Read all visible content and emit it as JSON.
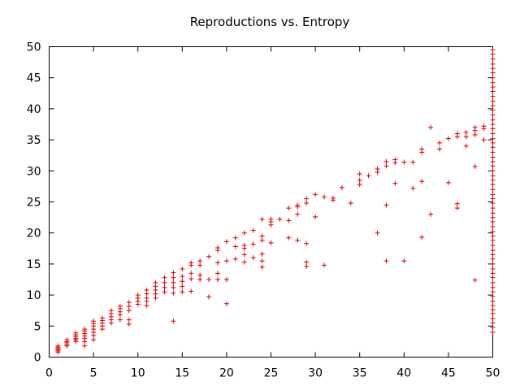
{
  "chart_data": {
    "type": "scatter",
    "title": "Reproductions vs. Entropy",
    "xlabel": "",
    "ylabel": "",
    "xlim": [
      0,
      50
    ],
    "ylim": [
      0,
      50
    ],
    "x_ticks": [
      0,
      5,
      10,
      15,
      20,
      25,
      30,
      35,
      40,
      45,
      50
    ],
    "y_ticks": [
      0,
      5,
      10,
      15,
      20,
      25,
      30,
      35,
      40,
      45,
      50
    ],
    "grid": false,
    "marker": "+",
    "color": "#dd0000",
    "series": [
      {
        "name": "Reproductions",
        "points": [
          [
            1,
            0.8
          ],
          [
            1,
            1.0
          ],
          [
            1,
            1.2
          ],
          [
            1,
            1.4
          ],
          [
            1,
            1.6
          ],
          [
            1,
            1.8
          ],
          [
            2,
            1.8
          ],
          [
            2,
            2.0
          ],
          [
            2,
            2.3
          ],
          [
            2,
            2.5
          ],
          [
            2,
            2.8
          ],
          [
            3,
            2.5
          ],
          [
            3,
            2.8
          ],
          [
            3,
            3.0
          ],
          [
            3,
            3.3
          ],
          [
            3,
            3.6
          ],
          [
            3,
            3.9
          ],
          [
            4,
            1.8
          ],
          [
            4,
            2.5
          ],
          [
            4,
            3.0
          ],
          [
            4,
            3.4
          ],
          [
            4,
            3.8
          ],
          [
            4,
            4.2
          ],
          [
            4,
            4.5
          ],
          [
            5,
            2.8
          ],
          [
            5,
            3.5
          ],
          [
            5,
            4.0
          ],
          [
            5,
            4.5
          ],
          [
            5,
            5.0
          ],
          [
            5,
            5.4
          ],
          [
            5,
            5.8
          ],
          [
            6,
            4.5
          ],
          [
            6,
            5.0
          ],
          [
            6,
            5.5
          ],
          [
            6,
            5.9
          ],
          [
            6,
            6.3
          ],
          [
            7,
            5.5
          ],
          [
            7,
            6.0
          ],
          [
            7,
            6.5
          ],
          [
            7,
            7.0
          ],
          [
            7,
            7.5
          ],
          [
            8,
            6.0
          ],
          [
            8,
            6.8
          ],
          [
            8,
            7.3
          ],
          [
            8,
            7.8
          ],
          [
            8,
            8.2
          ],
          [
            9,
            5.3
          ],
          [
            9,
            6.0
          ],
          [
            9,
            7.5
          ],
          [
            9,
            8.2
          ],
          [
            9,
            8.8
          ],
          [
            10,
            8.5
          ],
          [
            10,
            9.0
          ],
          [
            10,
            9.5
          ],
          [
            10,
            10.0
          ],
          [
            11,
            8.3
          ],
          [
            11,
            9.0
          ],
          [
            11,
            9.5
          ],
          [
            11,
            10.2
          ],
          [
            11,
            10.8
          ],
          [
            12,
            9.5
          ],
          [
            12,
            10.2
          ],
          [
            12,
            10.8
          ],
          [
            12,
            11.4
          ],
          [
            12,
            12.0
          ],
          [
            13,
            10.5
          ],
          [
            13,
            11.2
          ],
          [
            13,
            12.0
          ],
          [
            13,
            12.8
          ],
          [
            14,
            5.8
          ],
          [
            14,
            10.3
          ],
          [
            14,
            11.2
          ],
          [
            14,
            12.0
          ],
          [
            14,
            12.8
          ],
          [
            14,
            13.6
          ],
          [
            15,
            10.5
          ],
          [
            15,
            11.4
          ],
          [
            15,
            12.2
          ],
          [
            15,
            13.0
          ],
          [
            15,
            14.2
          ],
          [
            16,
            10.6
          ],
          [
            16,
            12.6
          ],
          [
            16,
            13.5
          ],
          [
            16,
            14.8
          ],
          [
            16,
            15.2
          ],
          [
            17,
            12.5
          ],
          [
            17,
            13.2
          ],
          [
            17,
            14.8
          ],
          [
            17,
            15.5
          ],
          [
            18,
            9.7
          ],
          [
            18,
            12.5
          ],
          [
            18,
            16.2
          ],
          [
            19,
            12.5
          ],
          [
            19,
            13.5
          ],
          [
            19,
            15.2
          ],
          [
            19,
            17.2
          ],
          [
            19,
            17.6
          ],
          [
            20,
            8.6
          ],
          [
            20,
            12.5
          ],
          [
            20,
            15.5
          ],
          [
            20,
            18.6
          ],
          [
            21,
            15.8
          ],
          [
            21,
            17.8
          ],
          [
            21,
            19.2
          ],
          [
            22,
            15.3
          ],
          [
            22,
            16.5
          ],
          [
            22,
            17.5
          ],
          [
            22,
            18.0
          ],
          [
            22,
            20.0
          ],
          [
            23,
            16.0
          ],
          [
            23,
            18.2
          ],
          [
            23,
            20.4
          ],
          [
            24,
            14.5
          ],
          [
            24,
            15.5
          ],
          [
            24,
            16.6
          ],
          [
            24,
            18.8
          ],
          [
            24,
            19.5
          ],
          [
            24,
            22.2
          ],
          [
            25,
            18.4
          ],
          [
            25,
            21.3
          ],
          [
            25,
            21.8
          ],
          [
            25,
            22.2
          ],
          [
            26,
            22.2
          ],
          [
            27,
            19.2
          ],
          [
            27,
            22.0
          ],
          [
            27,
            24.0
          ],
          [
            28,
            18.8
          ],
          [
            28,
            23.0
          ],
          [
            28,
            24.2
          ],
          [
            28,
            24.5
          ],
          [
            29,
            14.6
          ],
          [
            29,
            15.3
          ],
          [
            29,
            18.3
          ],
          [
            29,
            24.8
          ],
          [
            29,
            25.5
          ],
          [
            30,
            22.6
          ],
          [
            30,
            26.2
          ],
          [
            31,
            14.8
          ],
          [
            31,
            25.8
          ],
          [
            32,
            25.3
          ],
          [
            32,
            25.6
          ],
          [
            33,
            27.3
          ],
          [
            34,
            24.8
          ],
          [
            35,
            27.8
          ],
          [
            35,
            28.5
          ],
          [
            35,
            29.5
          ],
          [
            36,
            29.2
          ],
          [
            37,
            20.0
          ],
          [
            37,
            29.8
          ],
          [
            37,
            30.3
          ],
          [
            38,
            15.5
          ],
          [
            38,
            24.5
          ],
          [
            38,
            30.8
          ],
          [
            38,
            31.5
          ],
          [
            39,
            28.0
          ],
          [
            39,
            31.3
          ],
          [
            39,
            31.8
          ],
          [
            40,
            15.5
          ],
          [
            40,
            31.4
          ],
          [
            41,
            27.2
          ],
          [
            41,
            31.4
          ],
          [
            42,
            19.3
          ],
          [
            42,
            28.3
          ],
          [
            42,
            33.0
          ],
          [
            42,
            33.5
          ],
          [
            43,
            23.0
          ],
          [
            43,
            37.0
          ],
          [
            44,
            33.5
          ],
          [
            44,
            34.5
          ],
          [
            45,
            28.1
          ],
          [
            45,
            35.2
          ],
          [
            46,
            24.0
          ],
          [
            46,
            24.7
          ],
          [
            46,
            35.5
          ],
          [
            46,
            36.0
          ],
          [
            47,
            34.0
          ],
          [
            47,
            35.5
          ],
          [
            47,
            36.2
          ],
          [
            48,
            12.4
          ],
          [
            48,
            30.7
          ],
          [
            48,
            35.8
          ],
          [
            48,
            36.5
          ],
          [
            48,
            37.0
          ],
          [
            49,
            35.0
          ],
          [
            49,
            36.8
          ],
          [
            49,
            37.2
          ],
          [
            50,
            4.0
          ],
          [
            50,
            4.8
          ],
          [
            50,
            5.5
          ],
          [
            50,
            6.2
          ],
          [
            50,
            7.0
          ],
          [
            50,
            7.6
          ],
          [
            50,
            8.3
          ],
          [
            50,
            9.0
          ],
          [
            50,
            9.8
          ],
          [
            50,
            10.5
          ],
          [
            50,
            11.2
          ],
          [
            50,
            12.0
          ],
          [
            50,
            12.8
          ],
          [
            50,
            13.5
          ],
          [
            50,
            14.2
          ],
          [
            50,
            15.0
          ],
          [
            50,
            15.8
          ],
          [
            50,
            16.5
          ],
          [
            50,
            17.2
          ],
          [
            50,
            18.0
          ],
          [
            50,
            18.8
          ],
          [
            50,
            19.5
          ],
          [
            50,
            20.2
          ],
          [
            50,
            21.0
          ],
          [
            50,
            21.8
          ],
          [
            50,
            22.5
          ],
          [
            50,
            23.2
          ],
          [
            50,
            24.0
          ],
          [
            50,
            24.8
          ],
          [
            50,
            25.5
          ],
          [
            50,
            26.2
          ],
          [
            50,
            27.0
          ],
          [
            50,
            27.8
          ],
          [
            50,
            28.5
          ],
          [
            50,
            29.2
          ],
          [
            50,
            30.0
          ],
          [
            50,
            30.8
          ],
          [
            50,
            31.5
          ],
          [
            50,
            32.2
          ],
          [
            50,
            33.0
          ],
          [
            50,
            33.8
          ],
          [
            50,
            34.5
          ],
          [
            50,
            35.2
          ],
          [
            50,
            36.0
          ],
          [
            50,
            36.8
          ],
          [
            50,
            37.5
          ],
          [
            50,
            38.2
          ],
          [
            50,
            39.0
          ],
          [
            50,
            39.8
          ],
          [
            50,
            40.5
          ],
          [
            50,
            41.2
          ],
          [
            50,
            42.0
          ],
          [
            50,
            42.8
          ],
          [
            50,
            43.5
          ],
          [
            50,
            44.2
          ],
          [
            50,
            45.0
          ],
          [
            50,
            45.8
          ],
          [
            50,
            46.5
          ],
          [
            50,
            47.2
          ],
          [
            50,
            48.0
          ],
          [
            50,
            48.8
          ],
          [
            50,
            49.5
          ]
        ]
      }
    ]
  }
}
